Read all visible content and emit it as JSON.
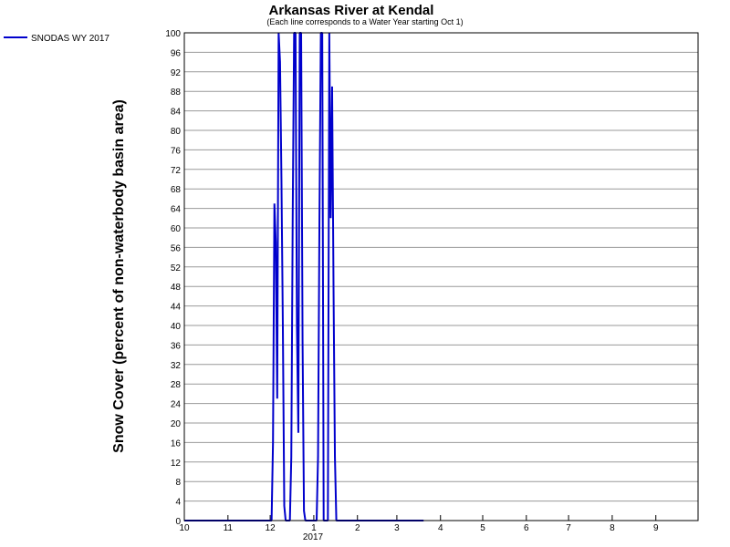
{
  "chart_data": {
    "type": "line",
    "title": "Arkansas River at Kendal",
    "subtitle": "(Each line corresponds to a Water Year starting Oct 1)",
    "ylabel": "Snow Cover (percent of non-waterbody basin area)",
    "xlabel": "",
    "ylim": [
      0,
      100
    ],
    "y_ticks": [
      0,
      4,
      8,
      12,
      16,
      20,
      24,
      28,
      32,
      36,
      40,
      44,
      48,
      52,
      56,
      60,
      64,
      68,
      72,
      76,
      80,
      84,
      88,
      92,
      96,
      100
    ],
    "xlim": [
      "2016-10-01",
      "2017-09-30"
    ],
    "x_ticks": [
      {
        "date": "2016-10-01",
        "label": "10"
      },
      {
        "date": "2016-11-01",
        "label": "11"
      },
      {
        "date": "2016-12-01",
        "label": "12"
      },
      {
        "date": "2017-01-01",
        "label": "1"
      },
      {
        "date": "2017-02-01",
        "label": "2"
      },
      {
        "date": "2017-03-01",
        "label": "3"
      },
      {
        "date": "2017-04-01",
        "label": "4"
      },
      {
        "date": "2017-05-01",
        "label": "5"
      },
      {
        "date": "2017-06-01",
        "label": "6"
      },
      {
        "date": "2017-07-01",
        "label": "7"
      },
      {
        "date": "2017-08-01",
        "label": "8"
      },
      {
        "date": "2017-09-01",
        "label": "9"
      }
    ],
    "year_label": "2017",
    "grid": true,
    "legend_position": "top-left",
    "series": [
      {
        "name": "SNODAS WY 2017",
        "color": "#0000cc",
        "points": [
          [
            "2016-10-01",
            0
          ],
          [
            "2016-12-02",
            0
          ],
          [
            "2016-12-03",
            16
          ],
          [
            "2016-12-04",
            65
          ],
          [
            "2016-12-05",
            57
          ],
          [
            "2016-12-06",
            25
          ],
          [
            "2016-12-07",
            100
          ],
          [
            "2016-12-08",
            94
          ],
          [
            "2016-12-09",
            70
          ],
          [
            "2016-12-10",
            40
          ],
          [
            "2016-12-11",
            3
          ],
          [
            "2016-12-12",
            0
          ],
          [
            "2016-12-15",
            0
          ],
          [
            "2016-12-16",
            13
          ],
          [
            "2016-12-17",
            62
          ],
          [
            "2016-12-18",
            100
          ],
          [
            "2016-12-19",
            100
          ],
          [
            "2016-12-20",
            40
          ],
          [
            "2016-12-21",
            18
          ],
          [
            "2016-12-22",
            100
          ],
          [
            "2016-12-23",
            100
          ],
          [
            "2016-12-24",
            37
          ],
          [
            "2016-12-25",
            2
          ],
          [
            "2016-12-26",
            0
          ],
          [
            "2017-01-03",
            0
          ],
          [
            "2017-01-04",
            13
          ],
          [
            "2017-01-05",
            62
          ],
          [
            "2017-01-06",
            100
          ],
          [
            "2017-01-07",
            100
          ],
          [
            "2017-01-08",
            0
          ],
          [
            "2017-01-11",
            0
          ],
          [
            "2017-01-12",
            100
          ],
          [
            "2017-01-13",
            62
          ],
          [
            "2017-01-14",
            89
          ],
          [
            "2017-01-15",
            48
          ],
          [
            "2017-01-16",
            13
          ],
          [
            "2017-01-17",
            0
          ],
          [
            "2017-03-20",
            0
          ]
        ]
      }
    ]
  }
}
